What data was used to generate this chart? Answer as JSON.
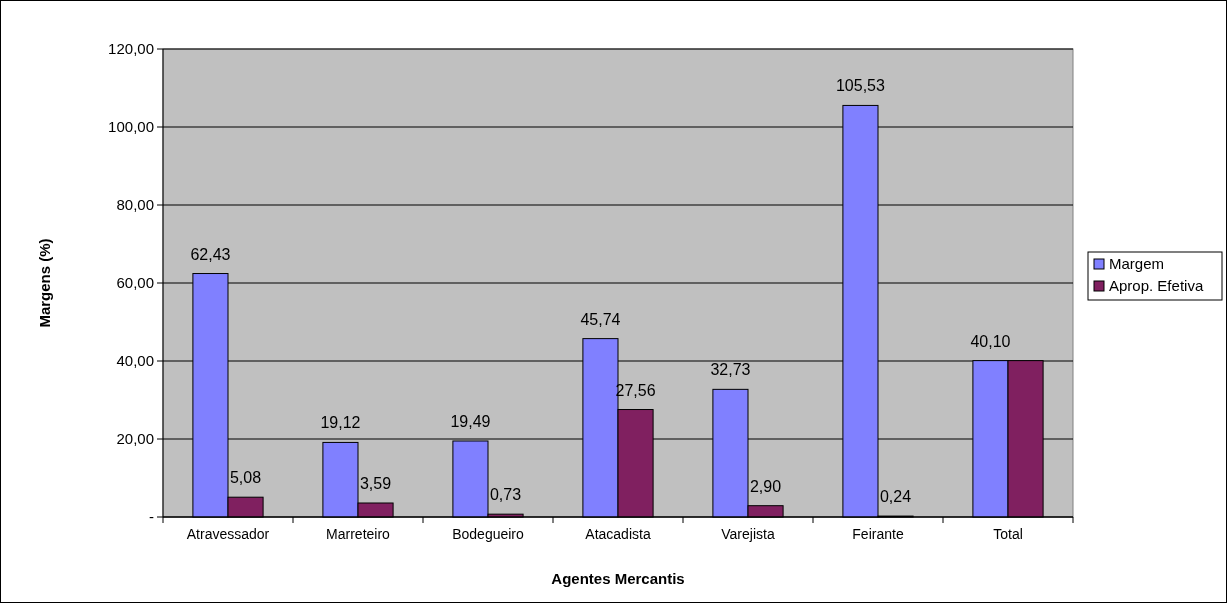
{
  "chart_data": {
    "type": "bar",
    "xlabel": "Agentes Mercantis",
    "ylabel": "Margens (%)",
    "categories": [
      "Atravessador",
      "Marreteiro",
      "Bodegueiro",
      "Atacadista",
      "Varejista",
      "Feirante",
      "Total"
    ],
    "series": [
      {
        "name": "Margem",
        "color": "#8080ff",
        "values": [
          62.43,
          19.12,
          19.49,
          45.74,
          32.73,
          105.53,
          40.1
        ],
        "value_labels": [
          "62,43",
          "19,12",
          "19,49",
          "45,74",
          "32,73",
          "105,53",
          "40,10"
        ]
      },
      {
        "name": "Aprop. Efetiva",
        "color": "#802060",
        "values": [
          5.08,
          3.59,
          0.73,
          27.56,
          2.9,
          0.24,
          40.1
        ],
        "value_labels": [
          "5,08",
          "3,59",
          "0,73",
          "27,56",
          "2,90",
          "0,24",
          null
        ]
      }
    ],
    "ylim": [
      0,
      120
    ],
    "yticks": [
      {
        "value": 0,
        "label": "-"
      },
      {
        "value": 20,
        "label": "20,00"
      },
      {
        "value": 40,
        "label": "40,00"
      },
      {
        "value": 60,
        "label": "60,00"
      },
      {
        "value": 80,
        "label": "80,00"
      },
      {
        "value": 100,
        "label": "100,00"
      },
      {
        "value": 120,
        "label": "120,00"
      }
    ],
    "grid": "y",
    "legend": "right"
  }
}
